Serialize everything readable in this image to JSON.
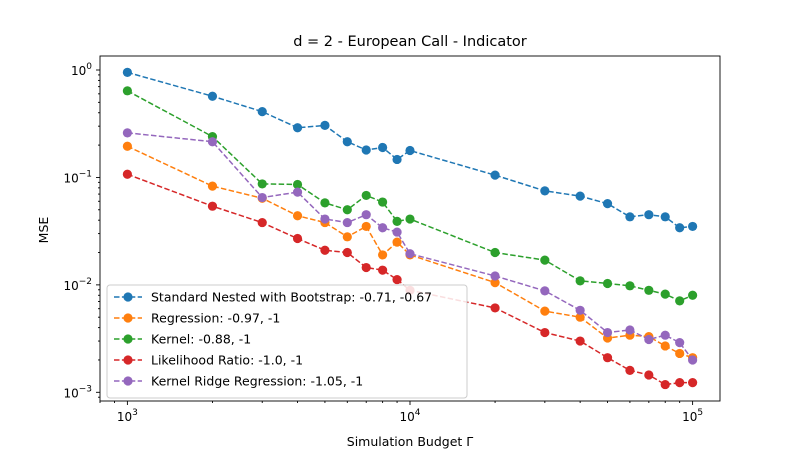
{
  "chart_data": {
    "type": "line",
    "title": "d = 2 - European Call - Indicator",
    "xlabel": "Simulation Budget Γ",
    "ylabel": "MSE",
    "xscale": "log",
    "yscale": "log",
    "xlim": [
      800,
      125000
    ],
    "ylim": [
      0.00083,
      1.35
    ],
    "x_ticks": [
      {
        "value": 1000,
        "base": "10",
        "exp": "3"
      },
      {
        "value": 10000,
        "base": "10",
        "exp": "4"
      },
      {
        "value": 100000,
        "base": "10",
        "exp": "5"
      }
    ],
    "y_ticks": [
      {
        "value": 0.001,
        "base": "10",
        "exp": "−3"
      },
      {
        "value": 0.01,
        "base": "10",
        "exp": "−2"
      },
      {
        "value": 0.1,
        "base": "10",
        "exp": "−1"
      },
      {
        "value": 1,
        "base": "10",
        "exp": "0"
      }
    ],
    "legend_position": "lower-left",
    "x": [
      1000,
      2000,
      3000,
      4000,
      5000,
      6000,
      7000,
      8000,
      9000,
      10000,
      20000,
      30000,
      40000,
      50000,
      60000,
      70000,
      80000,
      90000,
      100000
    ],
    "series": [
      {
        "name": "Standard Nested with Bootstrap: -0.71, -0.67",
        "color": "#1f77b4",
        "values": [
          0.95,
          0.57,
          0.41,
          0.29,
          0.305,
          0.215,
          0.18,
          0.19,
          0.147,
          0.178,
          0.105,
          0.075,
          0.067,
          0.057,
          0.043,
          0.045,
          0.043,
          0.034,
          0.035
        ]
      },
      {
        "name": "Regression: -0.97, -1",
        "color": "#ff7f0e",
        "values": [
          0.195,
          0.083,
          0.064,
          0.044,
          0.038,
          0.028,
          0.035,
          0.019,
          0.025,
          0.019,
          0.0105,
          0.0057,
          0.005,
          0.0032,
          0.0034,
          0.0033,
          0.0027,
          0.0023,
          0.0021
        ]
      },
      {
        "name": "Kernel: -0.88, -1",
        "color": "#2ca02c",
        "values": [
          0.64,
          0.24,
          0.087,
          0.086,
          0.058,
          0.05,
          0.068,
          0.059,
          0.039,
          0.041,
          0.02,
          0.017,
          0.0109,
          0.0103,
          0.0098,
          0.0089,
          0.0082,
          0.0071,
          0.008
        ]
      },
      {
        "name": "Likelihood Ratio: -1.0, -1",
        "color": "#d62728",
        "values": [
          0.107,
          0.054,
          0.038,
          0.027,
          0.021,
          0.02,
          0.0145,
          0.0137,
          0.0112,
          0.0089,
          0.0061,
          0.0036,
          0.003,
          0.0021,
          0.0016,
          0.00145,
          0.00118,
          0.00123,
          0.00123
        ]
      },
      {
        "name": "Kernel Ridge Regression: -1.05, -1",
        "color": "#9467bd",
        "values": [
          0.26,
          0.215,
          0.065,
          0.073,
          0.041,
          0.038,
          0.045,
          0.034,
          0.031,
          0.0195,
          0.0121,
          0.0088,
          0.0058,
          0.0036,
          0.0038,
          0.0031,
          0.0034,
          0.0029,
          0.002
        ]
      }
    ]
  }
}
